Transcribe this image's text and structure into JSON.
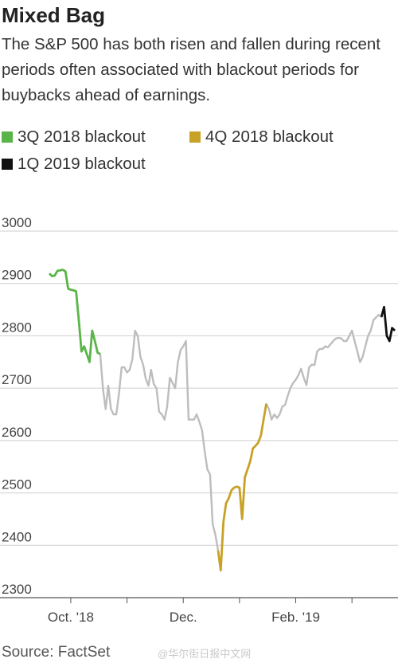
{
  "header": {
    "title": "Mixed Bag",
    "subtitle": "The S&P 500 has both risen and fallen during recent periods often associated with blackout periods for buybacks ahead of earnings."
  },
  "legend": {
    "items": [
      {
        "label": "3Q 2018 blackout",
        "color": "#5ab548"
      },
      {
        "label": "4Q 2018 blackout",
        "color": "#c8a227"
      },
      {
        "label": "1Q 2019 blackout",
        "color": "#111111"
      }
    ]
  },
  "footer": {
    "source": "Source: FactSet",
    "watermark": "@华尔街日报中文网"
  },
  "chart_data": {
    "type": "line",
    "title": "Mixed Bag",
    "xlabel": "",
    "ylabel": "",
    "ylim": [
      2300,
      3000
    ],
    "yticks": [
      3000,
      2900,
      2800,
      2700,
      2600,
      2500,
      2400,
      2300
    ],
    "xticks": [
      {
        "label": "Oct. '18",
        "x": 8
      },
      {
        "label": "",
        "x": 29
      },
      {
        "label": "Dec.",
        "x": 50
      },
      {
        "label": "",
        "x": 71
      },
      {
        "label": "Feb. '19",
        "x": 92
      },
      {
        "label": "",
        "x": 113
      }
    ],
    "xlim": [
      0,
      129
    ],
    "grid": true,
    "base_color": "#bdbdbd",
    "series": [
      {
        "name": "S&P 500",
        "values": [
          2919,
          2914,
          2915,
          2924,
          2925,
          2926,
          2923,
          2890,
          2888,
          2887,
          2885,
          2830,
          2770,
          2780,
          2765,
          2750,
          2810,
          2790,
          2768,
          2765,
          2700,
          2660,
          2705,
          2660,
          2650,
          2650,
          2690,
          2740,
          2740,
          2730,
          2735,
          2755,
          2810,
          2800,
          2760,
          2745,
          2718,
          2705,
          2735,
          2708,
          2700,
          2655,
          2650,
          2640,
          2665,
          2720,
          2710,
          2700,
          2750,
          2773,
          2780,
          2790,
          2640,
          2640,
          2640,
          2650,
          2636,
          2620,
          2580,
          2545,
          2535,
          2440,
          2420,
          2390,
          2352,
          2445,
          2480,
          2490,
          2505,
          2510,
          2512,
          2510,
          2450,
          2530,
          2545,
          2560,
          2585,
          2590,
          2596,
          2610,
          2640,
          2670,
          2660,
          2640,
          2650,
          2643,
          2650,
          2665,
          2668,
          2685,
          2700,
          2710,
          2716,
          2725,
          2737,
          2720,
          2706,
          2740,
          2745,
          2744,
          2770,
          2775,
          2775,
          2780,
          2778,
          2784,
          2790,
          2795,
          2796,
          2795,
          2790,
          2790,
          2800,
          2810,
          2790,
          2770,
          2750,
          2760,
          2780,
          2800,
          2810,
          2830,
          2835,
          2840,
          2836,
          2855,
          2800,
          2790,
          2815,
          2810
        ]
      }
    ],
    "highlights": [
      {
        "name": "3Q 2018 blackout",
        "start": 0,
        "end": 19,
        "color": "#5ab548"
      },
      {
        "name": "4Q 2018 blackout",
        "start": 63,
        "end": 81,
        "color": "#c8a227"
      },
      {
        "name": "1Q 2019 blackout",
        "start": 124,
        "end": 129,
        "color": "#111111"
      }
    ]
  }
}
